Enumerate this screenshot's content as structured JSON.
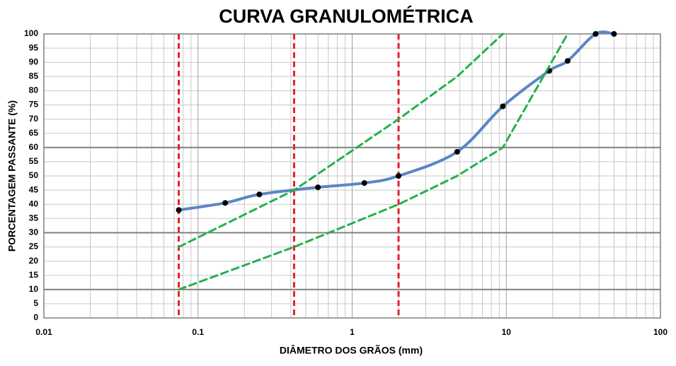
{
  "chart_data": {
    "type": "line",
    "title": "CURVA GRANULOMÉTRICA",
    "xlabel": "DIÂMETRO DOS GRÃOS (mm)",
    "ylabel": "PORCENTAGEM PASSANTE (%)",
    "xscale": "log",
    "xlim": [
      0.01,
      100
    ],
    "xticks": [
      0.01,
      0.1,
      1,
      10,
      100
    ],
    "ylim": [
      0,
      100
    ],
    "yticks": [
      0,
      5,
      10,
      15,
      20,
      25,
      30,
      35,
      40,
      45,
      50,
      55,
      60,
      65,
      70,
      75,
      80,
      85,
      90,
      95,
      100
    ],
    "grid": true,
    "minor_grid": true,
    "hlines": [
      10,
      30,
      60
    ],
    "hline_color": "#808080",
    "vlines": [
      0.075,
      0.42,
      2
    ],
    "vline_color": "#e8202a",
    "series": [
      {
        "color": "#5a86c5",
        "smooth": true,
        "marker": "#000000",
        "x": [
          0.075,
          0.15,
          0.25,
          0.6,
          1.2,
          2,
          4.8,
          9.5,
          19,
          25,
          38,
          50
        ],
        "values": [
          38,
          40.5,
          43.5,
          46,
          47.5,
          50,
          58.5,
          74.5,
          87,
          90.5,
          100,
          100
        ]
      },
      {
        "color": "#21b24b",
        "dash": true,
        "x": [
          0.075,
          0.42,
          2,
          4.8,
          9.5
        ],
        "values": [
          25,
          45,
          70,
          85,
          100
        ]
      },
      {
        "color": "#21b24b",
        "dash": true,
        "x": [
          0.075,
          0.42,
          2,
          4.8,
          9.5,
          25
        ],
        "values": [
          10,
          25,
          40,
          50,
          60,
          100
        ]
      }
    ]
  }
}
